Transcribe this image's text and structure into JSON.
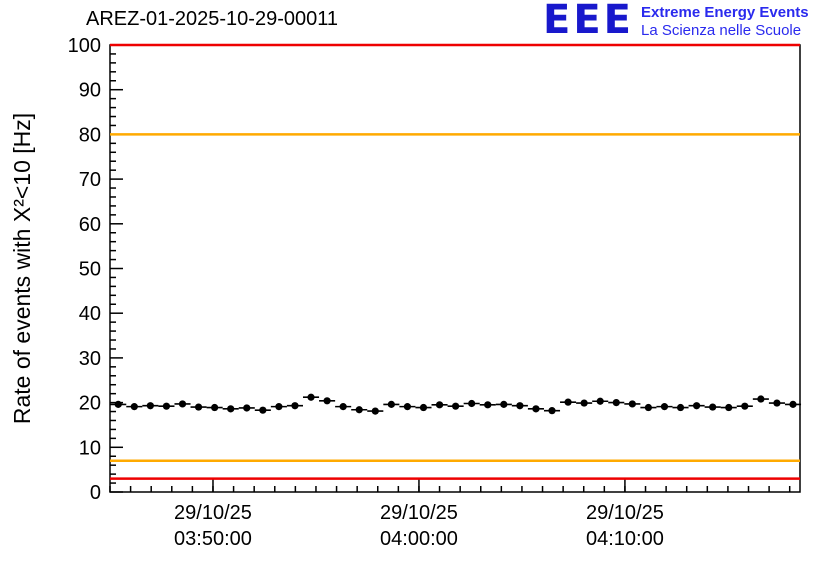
{
  "title": "AREZ-01-2025-10-29-00011",
  "logo": {
    "text": "EEE",
    "line1": "Extreme Energy Events",
    "line2": "La Scienza nelle Scuole",
    "color": "#1818cc"
  },
  "chart_data": {
    "type": "scatter",
    "title": "AREZ-01-2025-10-29-00011",
    "xlabel": "",
    "ylabel": "Rate of events with X²<10 [Hz]",
    "ylim": [
      0,
      100
    ],
    "y_major_step": 10,
    "y_minor_step": 2,
    "xlim_minutes": [
      0,
      33.5
    ],
    "x_minor_step": 1,
    "x_ticks": [
      {
        "pos": 5,
        "label1": "29/10/25",
        "label2": "03:50:00"
      },
      {
        "pos": 15,
        "label1": "29/10/25",
        "label2": "04:00:00"
      },
      {
        "pos": 25,
        "label1": "29/10/25",
        "label2": "04:10:00"
      }
    ],
    "hlines": [
      {
        "y": 100,
        "color": "#ee0000",
        "name": "upper-alarm"
      },
      {
        "y": 80,
        "color": "#ffaa00",
        "name": "upper-warning"
      },
      {
        "y": 7,
        "color": "#ffaa00",
        "name": "lower-warning"
      },
      {
        "y": 3,
        "color": "#ee0000",
        "name": "lower-alarm"
      }
    ],
    "series": [
      {
        "name": "event-rate",
        "marker": "filled-circle",
        "color": "#000000",
        "xerr": 0.39,
        "yerr": 0.7,
        "x": [
          0.4,
          1.18,
          1.96,
          2.74,
          3.52,
          4.3,
          5.08,
          5.86,
          6.64,
          7.42,
          8.2,
          8.98,
          9.76,
          10.54,
          11.32,
          12.1,
          12.88,
          13.66,
          14.44,
          15.22,
          16.0,
          16.78,
          17.56,
          18.34,
          19.12,
          19.9,
          20.68,
          21.46,
          22.24,
          23.02,
          23.8,
          24.58,
          25.36,
          26.14,
          26.92,
          27.7,
          28.48,
          29.26,
          30.04,
          30.82,
          31.6,
          32.38,
          33.16
        ],
        "y": [
          19.6,
          19.1,
          19.3,
          19.2,
          19.7,
          19.0,
          18.9,
          18.6,
          18.8,
          18.3,
          19.1,
          19.3,
          21.2,
          20.4,
          19.1,
          18.4,
          18.1,
          19.6,
          19.1,
          18.9,
          19.5,
          19.2,
          19.8,
          19.5,
          19.6,
          19.3,
          18.6,
          18.2,
          20.1,
          19.9,
          20.3,
          20.0,
          19.7,
          18.9,
          19.1,
          18.9,
          19.3,
          19.0,
          18.9,
          19.2,
          20.8,
          19.9,
          19.6
        ]
      }
    ],
    "grid": false,
    "legend": "none"
  }
}
